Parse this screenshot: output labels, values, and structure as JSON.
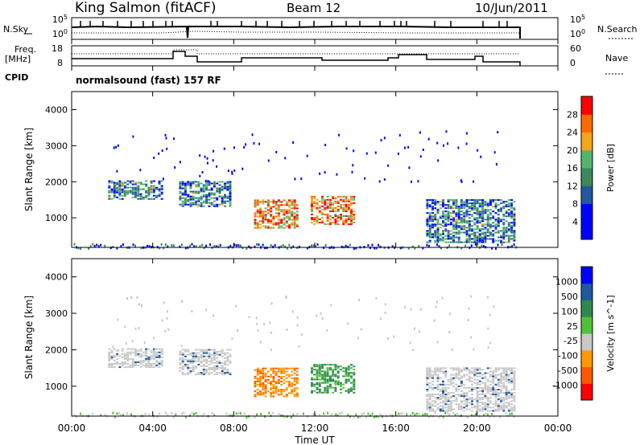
{
  "header": {
    "station": "King Salmon (fitACF)",
    "beam": "Beam 12",
    "date": "10/Jun/2011"
  },
  "side_labels": {
    "nsky": "N.Sky",
    "freq": "Freq.",
    "freq_unit": "[MHz]",
    "cpid": "CPID",
    "nsearch": "N.Search",
    "nave": "Nave"
  },
  "cpid_text": "normalsound (fast) 157 RF",
  "colors": {
    "power": [
      "#0000ff",
      "#0000ff",
      "#225aa0",
      "#3b8a5a",
      "#52b66d",
      "#f3a51c",
      "#ff6a00",
      "#ff0000"
    ],
    "velocity": [
      "#0000ff",
      "#1e5aa0",
      "#2e8a4c",
      "#4fc23a",
      "#c8c8c8",
      "#ff9a00",
      "#ff5a00",
      "#ff0000"
    ]
  },
  "chart_data": [
    {
      "type": "line",
      "panel": "noise",
      "left_axis": {
        "label": "N.Sky",
        "ticks": [
          "10^5",
          "10^0"
        ]
      },
      "right_axis": {
        "label": "N.Search",
        "ticks": [
          "10^5",
          "10^0"
        ]
      },
      "x": [
        "00:00",
        "04:00",
        "08:00",
        "12:00",
        "16:00",
        "20:00",
        "00:00"
      ]
    },
    {
      "type": "line",
      "panel": "frequency",
      "left_axis": {
        "label": "Freq. [MHz]",
        "ticks": [
          "18",
          "8"
        ]
      },
      "right_axis": {
        "label": "Nave",
        "ticks": [
          "60",
          "0"
        ]
      },
      "x": [
        "00:00",
        "04:00",
        "08:00",
        "12:00",
        "16:00",
        "20:00",
        "00:00"
      ]
    },
    {
      "type": "heatmap",
      "panel": "power",
      "ylabel": "Slant Range [km]",
      "yticks": [
        "4000",
        "3000",
        "2000",
        "1000"
      ],
      "ylim": [
        180,
        4500
      ],
      "colorbar": {
        "label": "Power [dB]",
        "ticks": [
          "28",
          "24",
          "20",
          "16",
          "12",
          "8",
          "4"
        ],
        "range": [
          0,
          30
        ]
      },
      "xlim": [
        0,
        24
      ],
      "data_coverage_hours": [
        0,
        22
      ],
      "echo_regions": [
        {
          "t": [
            1.8,
            4.5
          ],
          "range_km": [
            1500,
            2000
          ],
          "level_db": 10
        },
        {
          "t": [
            5.3,
            7.8
          ],
          "range_km": [
            1300,
            2000
          ],
          "level_db": 12
        },
        {
          "t": [
            9.0,
            11.2
          ],
          "range_km": [
            700,
            1500
          ],
          "level_db": 22
        },
        {
          "t": [
            11.8,
            14.0
          ],
          "range_km": [
            800,
            1600
          ],
          "level_db": 24
        },
        {
          "t": [
            17.5,
            21.8
          ],
          "range_km": [
            300,
            1500
          ],
          "level_db": 10
        }
      ]
    },
    {
      "type": "heatmap",
      "panel": "velocity",
      "ylabel": "Slant Range [km]",
      "yticks": [
        "4000",
        "3000",
        "2000",
        "1000"
      ],
      "ylim": [
        180,
        4500
      ],
      "colorbar": {
        "label": "Velocity [m s^-1]",
        "ticks": [
          "1000",
          "500",
          "100",
          "25",
          "-25",
          "-100",
          "-500",
          "-1000"
        ]
      },
      "xlim": [
        0,
        24
      ],
      "xlabel": "Time UT",
      "xticks": [
        "00:00",
        "04:00",
        "08:00",
        "12:00",
        "16:00",
        "20:00",
        "00:00"
      ],
      "echo_regions": [
        {
          "t": [
            1.8,
            4.5
          ],
          "range_km": [
            1500,
            2000
          ],
          "velocity_ms": 0
        },
        {
          "t": [
            5.3,
            7.8
          ],
          "range_km": [
            1300,
            2000
          ],
          "velocity_ms": 0
        },
        {
          "t": [
            9.0,
            11.2
          ],
          "range_km": [
            700,
            1500
          ],
          "velocity_ms": -300
        },
        {
          "t": [
            11.8,
            14.0
          ],
          "range_km": [
            800,
            1600
          ],
          "velocity_ms": 200
        },
        {
          "t": [
            17.5,
            21.8
          ],
          "range_km": [
            300,
            1500
          ],
          "velocity_ms": 0
        }
      ]
    }
  ]
}
